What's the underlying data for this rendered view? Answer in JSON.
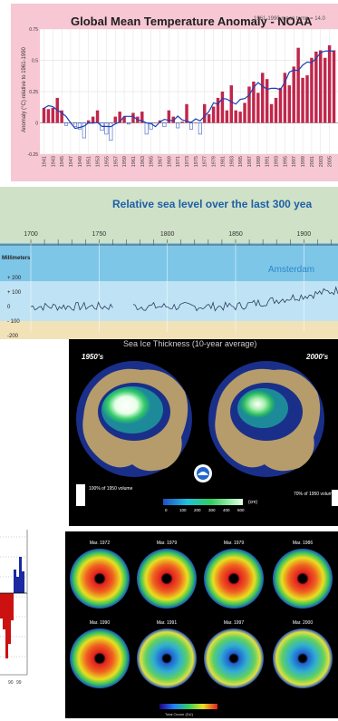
{
  "chart_data": [
    {
      "type": "bar",
      "title": "Global Mean Temperature Anomaly - NOAA",
      "subtitle": "1961-1990 mean temp = 14.0",
      "ylabel": "Anomaly (°C) relative to 1961-1990",
      "ylim": [
        -0.25,
        0.75
      ],
      "yticks": [
        "0.75",
        "0.5",
        "0.25",
        "0",
        "-0.25"
      ],
      "x_ticks": [
        "1941",
        "1943",
        "1945",
        "1947",
        "1949",
        "1951",
        "1953",
        "1955",
        "1957",
        "1959",
        "1961",
        "1963",
        "1965",
        "1967",
        "1969",
        "1971",
        "1973",
        "1975",
        "1977",
        "1979",
        "1981",
        "1983",
        "1985",
        "1987",
        "1989",
        "1991",
        "1993",
        "1995",
        "1997",
        "1999",
        "2001",
        "2003",
        "2005"
      ],
      "x": [
        1941,
        1942,
        1943,
        1944,
        1945,
        1946,
        1947,
        1948,
        1949,
        1950,
        1951,
        1952,
        1953,
        1954,
        1955,
        1956,
        1957,
        1958,
        1959,
        1960,
        1961,
        1962,
        1963,
        1964,
        1965,
        1966,
        1967,
        1968,
        1969,
        1970,
        1971,
        1972,
        1973,
        1974,
        1975,
        1976,
        1977,
        1978,
        1979,
        1980,
        1981,
        1982,
        1983,
        1984,
        1985,
        1986,
        1987,
        1988,
        1989,
        1990,
        1991,
        1992,
        1993,
        1994,
        1995,
        1996,
        1997,
        1998,
        1999,
        2000,
        2001,
        2002,
        2003,
        2004,
        2005,
        2006
      ],
      "values": [
        0.12,
        0.11,
        0.12,
        0.2,
        0.1,
        -0.02,
        0.0,
        -0.03,
        -0.05,
        -0.12,
        0.02,
        0.05,
        0.1,
        -0.06,
        -0.09,
        -0.14,
        0.05,
        0.09,
        0.05,
        -0.01,
        0.08,
        0.05,
        0.09,
        -0.09,
        -0.05,
        0.0,
        0.02,
        -0.03,
        0.1,
        0.05,
        -0.04,
        0.01,
        0.15,
        -0.05,
        0.0,
        -0.09,
        0.15,
        0.07,
        0.13,
        0.2,
        0.25,
        0.1,
        0.3,
        0.1,
        0.09,
        0.16,
        0.29,
        0.33,
        0.24,
        0.4,
        0.35,
        0.15,
        0.2,
        0.28,
        0.4,
        0.3,
        0.45,
        0.6,
        0.36,
        0.38,
        0.52,
        0.57,
        0.58,
        0.52,
        0.62,
        0.58
      ]
    },
    {
      "type": "line",
      "title": "Relative sea level over the last 300 yea",
      "ylabel": "Millimeters",
      "ylim": [
        -200,
        200
      ],
      "x_ticks": [
        "1700",
        "1750",
        "1800",
        "1850",
        "1900"
      ],
      "y_ticks": [
        "+ 200",
        "+ 100",
        "0",
        "- 100",
        "-200"
      ],
      "annotation": "Amsterdam"
    }
  ],
  "sea_ice_panel": {
    "title": "Sea Ice Thickness (10-year average)",
    "left_label": "1950's",
    "right_label": "2000's",
    "left_note": "100% of 1950 volume",
    "right_note": "70% of 1950 volume",
    "scale_ticks": [
      "0",
      "100",
      "200",
      "300",
      "400",
      "500"
    ],
    "scale_unit": "(cm)"
  },
  "ozone_panel": {
    "maps_top": [
      "Mar. 1972",
      "Mar. 1979",
      "Mar. 1979",
      "Mar. 1986"
    ],
    "maps_bottom": [
      "Mar. 1990",
      "Mar. 1991",
      "Mar. 1997",
      "Mar. 2000"
    ],
    "scale_label": "Total Ozone (DU)"
  },
  "partial_panel": {
    "x_ticks": [
      "90",
      "99"
    ]
  },
  "colors": {
    "bar": "#c0264b",
    "line": "#1c3fb5",
    "sea_line": "#2a3f5f",
    "sea_title": "#1e5fa8",
    "pink_bg": "#f7c7d3"
  }
}
